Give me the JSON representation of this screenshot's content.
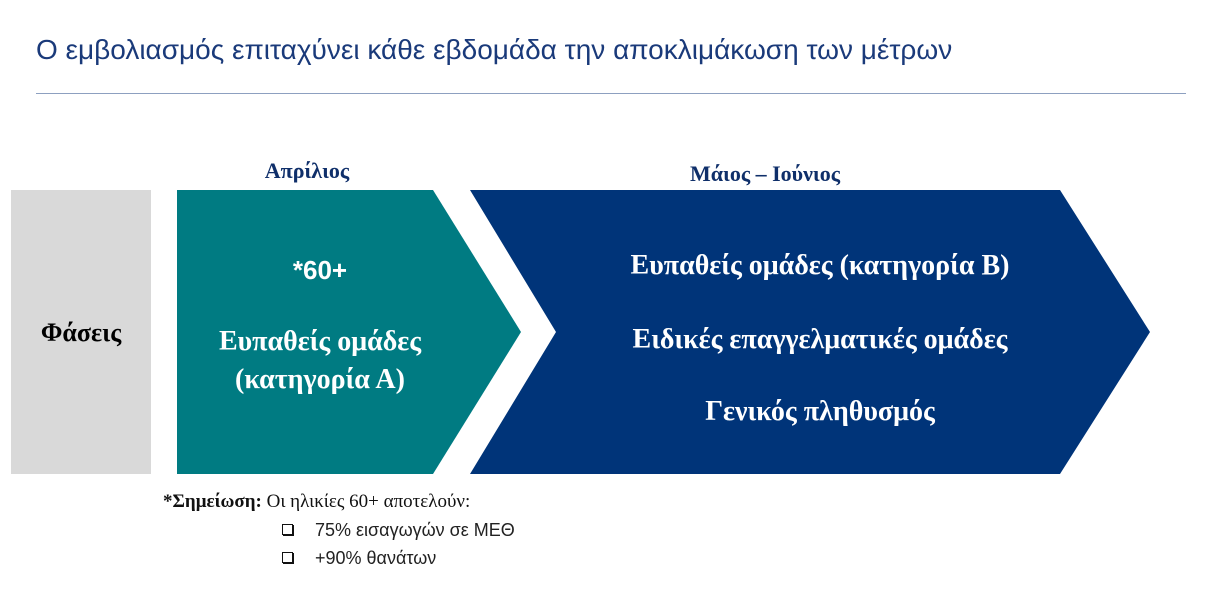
{
  "title": "Ο εμβολιασμός επιταχύνει κάθε εβδομάδα την αποκλιμάκωση των μέτρων",
  "colors": {
    "teal": "#007b82",
    "navy": "#003479",
    "grey": "#d9d9d9",
    "title": "#1a3a7a"
  },
  "phases_label": "Φάσεις",
  "phases": [
    {
      "period": "Απρίλιος",
      "lines": [
        "*60+",
        "Ευπαθείς ομάδες",
        "(κατηγορία Α)"
      ]
    },
    {
      "period": "Μάιος – Ιούνιος",
      "lines": [
        "Ευπαθείς ομάδες (κατηγορία Β)",
        "Ειδικές επαγγελματικές ομάδες",
        "Γενικός πληθυσμός"
      ]
    }
  ],
  "note": {
    "label": "*Σημείωση:",
    "text": "Οι ηλικίες 60+ αποτελούν:",
    "bullets": [
      "75% εισαγωγών σε ΜΕΘ",
      "+90% θανάτων"
    ]
  }
}
